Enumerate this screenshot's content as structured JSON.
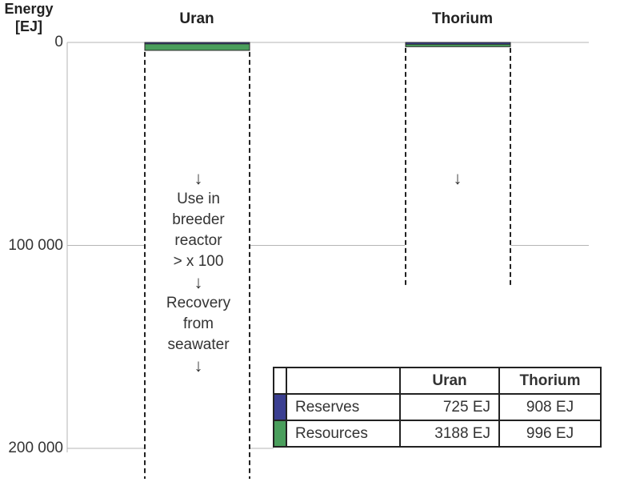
{
  "chart_data": {
    "type": "bar",
    "ylabel": "Energy\n[EJ]",
    "ylabel_lines": [
      "Energy",
      "[EJ]"
    ],
    "y_ticks": [
      {
        "value": 0,
        "label": "0"
      },
      {
        "value": 100000,
        "label": "100 000"
      },
      {
        "value": 200000,
        "label": "200 000"
      }
    ],
    "ylim": [
      0,
      215000
    ],
    "y_inverted": true,
    "grid": true,
    "categories": [
      "Uran",
      "Thorium"
    ],
    "series": [
      {
        "name": "Reserves",
        "color": "#3b3f91",
        "values": [
          725,
          908
        ]
      },
      {
        "name": "Resources",
        "color": "#4a9e5c",
        "values": [
          3188,
          996
        ]
      }
    ],
    "potential_extension": [
      {
        "category": "Uran",
        "to_value": 215000
      },
      {
        "category": "Thorium",
        "to_value": 120000
      }
    ],
    "annotations": {
      "uran": {
        "arrow": "↓",
        "line1": [
          "Use in",
          "breeder",
          "reactor",
          "> x 100"
        ],
        "line2": [
          "Recovery",
          "from",
          "seawater"
        ]
      },
      "thorium": {
        "arrow": "↓"
      }
    },
    "table": {
      "headers": [
        "",
        "Uran",
        "Thorium"
      ],
      "rows": [
        {
          "label": "Reserves",
          "color": "#3b3f91",
          "uran": "725 EJ",
          "thorium": "908 EJ"
        },
        {
          "label": "Resources",
          "color": "#4a9e5c",
          "uran": "3188 EJ",
          "thorium": "996 EJ"
        }
      ]
    }
  }
}
